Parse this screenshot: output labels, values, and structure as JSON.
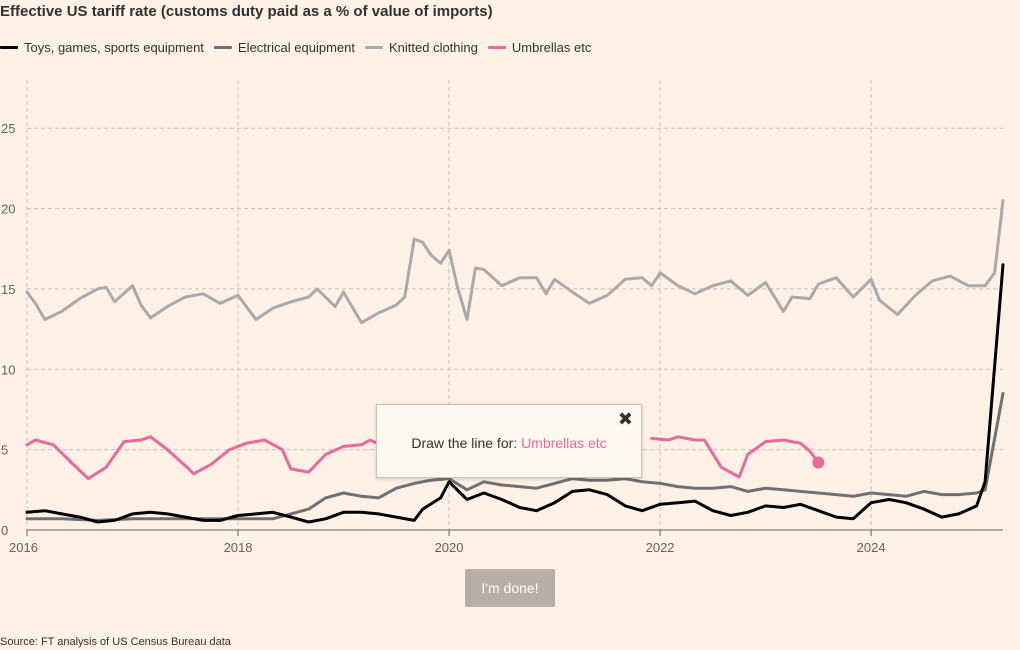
{
  "colors": {
    "toys": "#000000",
    "electrical": "#707070",
    "knitted": "#aaaaaa",
    "umbrellas": "#e86a9c",
    "background": "#fff1e5",
    "grid": "#c8bfb6"
  },
  "tooltip": {
    "prefix": "Draw the line for: ",
    "series": "Umbrellas etc",
    "close_icon": "✖"
  },
  "done_label": "I'm done!",
  "source": "Source: FT analysis of US Census Bureau data",
  "chart_data": {
    "type": "line",
    "title": "Effective US tariff rate (customs duty paid as a % of value of imports)",
    "xlabel": "",
    "ylabel": "",
    "xlim": [
      2016,
      2025.25
    ],
    "ylim": [
      0,
      28
    ],
    "x_ticks": [
      2016,
      2018,
      2020,
      2022,
      2024
    ],
    "y_ticks": [
      0,
      5,
      10,
      15,
      20,
      25
    ],
    "grid": true,
    "legend_position": "top-left",
    "series": [
      {
        "name": "Toys, games, sports equipment",
        "color_key": "toys",
        "points": [
          [
            2016.0,
            1.1
          ],
          [
            2016.17,
            1.2
          ],
          [
            2016.33,
            1.0
          ],
          [
            2016.5,
            0.8
          ],
          [
            2016.67,
            0.5
          ],
          [
            2016.83,
            0.6
          ],
          [
            2017.0,
            1.0
          ],
          [
            2017.17,
            1.1
          ],
          [
            2017.33,
            1.0
          ],
          [
            2017.5,
            0.8
          ],
          [
            2017.67,
            0.6
          ],
          [
            2017.83,
            0.6
          ],
          [
            2018.0,
            0.9
          ],
          [
            2018.17,
            1.0
          ],
          [
            2018.33,
            1.1
          ],
          [
            2018.5,
            0.8
          ],
          [
            2018.67,
            0.5
          ],
          [
            2018.83,
            0.7
          ],
          [
            2019.0,
            1.1
          ],
          [
            2019.17,
            1.1
          ],
          [
            2019.33,
            1.0
          ],
          [
            2019.5,
            0.8
          ],
          [
            2019.67,
            0.6
          ],
          [
            2019.75,
            1.3
          ],
          [
            2019.92,
            2.0
          ],
          [
            2020.0,
            3.0
          ],
          [
            2020.17,
            1.9
          ],
          [
            2020.33,
            2.3
          ],
          [
            2020.5,
            1.9
          ],
          [
            2020.67,
            1.4
          ],
          [
            2020.83,
            1.2
          ],
          [
            2021.0,
            1.7
          ],
          [
            2021.17,
            2.4
          ],
          [
            2021.33,
            2.5
          ],
          [
            2021.5,
            2.2
          ],
          [
            2021.67,
            1.5
          ],
          [
            2021.83,
            1.2
          ],
          [
            2022.0,
            1.6
          ],
          [
            2022.17,
            1.7
          ],
          [
            2022.33,
            1.8
          ],
          [
            2022.5,
            1.2
          ],
          [
            2022.67,
            0.9
          ],
          [
            2022.83,
            1.1
          ],
          [
            2023.0,
            1.5
          ],
          [
            2023.17,
            1.4
          ],
          [
            2023.33,
            1.6
          ],
          [
            2023.5,
            1.2
          ],
          [
            2023.67,
            0.8
          ],
          [
            2023.83,
            0.7
          ],
          [
            2024.0,
            1.7
          ],
          [
            2024.17,
            1.9
          ],
          [
            2024.33,
            1.7
          ],
          [
            2024.5,
            1.3
          ],
          [
            2024.67,
            0.8
          ],
          [
            2024.83,
            1.0
          ],
          [
            2025.0,
            1.5
          ],
          [
            2025.08,
            3.0
          ],
          [
            2025.25,
            16.5
          ]
        ]
      },
      {
        "name": "Electrical equipment",
        "color_key": "electrical",
        "points": [
          [
            2016.0,
            0.7
          ],
          [
            2016.33,
            0.7
          ],
          [
            2016.67,
            0.6
          ],
          [
            2017.0,
            0.7
          ],
          [
            2017.33,
            0.7
          ],
          [
            2017.67,
            0.7
          ],
          [
            2018.0,
            0.7
          ],
          [
            2018.33,
            0.7
          ],
          [
            2018.5,
            1.0
          ],
          [
            2018.67,
            1.3
          ],
          [
            2018.83,
            2.0
          ],
          [
            2019.0,
            2.3
          ],
          [
            2019.17,
            2.1
          ],
          [
            2019.33,
            2.0
          ],
          [
            2019.5,
            2.6
          ],
          [
            2019.67,
            2.9
          ],
          [
            2019.83,
            3.1
          ],
          [
            2020.0,
            3.2
          ],
          [
            2020.17,
            2.5
          ],
          [
            2020.33,
            3.0
          ],
          [
            2020.5,
            2.8
          ],
          [
            2020.67,
            2.7
          ],
          [
            2020.83,
            2.6
          ],
          [
            2021.0,
            2.9
          ],
          [
            2021.17,
            3.2
          ],
          [
            2021.33,
            3.1
          ],
          [
            2021.5,
            3.1
          ],
          [
            2021.67,
            3.2
          ],
          [
            2021.83,
            3.0
          ],
          [
            2022.0,
            2.9
          ],
          [
            2022.17,
            2.7
          ],
          [
            2022.33,
            2.6
          ],
          [
            2022.5,
            2.6
          ],
          [
            2022.67,
            2.7
          ],
          [
            2022.83,
            2.4
          ],
          [
            2023.0,
            2.6
          ],
          [
            2023.17,
            2.5
          ],
          [
            2023.33,
            2.4
          ],
          [
            2023.5,
            2.3
          ],
          [
            2023.67,
            2.2
          ],
          [
            2023.83,
            2.1
          ],
          [
            2024.0,
            2.3
          ],
          [
            2024.17,
            2.2
          ],
          [
            2024.33,
            2.1
          ],
          [
            2024.5,
            2.4
          ],
          [
            2024.67,
            2.2
          ],
          [
            2024.83,
            2.2
          ],
          [
            2025.0,
            2.3
          ],
          [
            2025.08,
            2.5
          ],
          [
            2025.25,
            8.5
          ]
        ]
      },
      {
        "name": "Knitted clothing",
        "color_key": "knitted",
        "points": [
          [
            2016.0,
            14.8
          ],
          [
            2016.08,
            14.1
          ],
          [
            2016.17,
            13.1
          ],
          [
            2016.33,
            13.6
          ],
          [
            2016.5,
            14.4
          ],
          [
            2016.67,
            15.0
          ],
          [
            2016.75,
            15.1
          ],
          [
            2016.83,
            14.2
          ],
          [
            2017.0,
            15.2
          ],
          [
            2017.08,
            14.0
          ],
          [
            2017.17,
            13.2
          ],
          [
            2017.33,
            13.9
          ],
          [
            2017.5,
            14.5
          ],
          [
            2017.67,
            14.7
          ],
          [
            2017.83,
            14.1
          ],
          [
            2018.0,
            14.6
          ],
          [
            2018.17,
            13.1
          ],
          [
            2018.33,
            13.8
          ],
          [
            2018.5,
            14.2
          ],
          [
            2018.67,
            14.5
          ],
          [
            2018.75,
            15.0
          ],
          [
            2018.92,
            13.9
          ],
          [
            2019.0,
            14.8
          ],
          [
            2019.17,
            12.9
          ],
          [
            2019.33,
            13.5
          ],
          [
            2019.5,
            14.0
          ],
          [
            2019.58,
            14.5
          ],
          [
            2019.67,
            18.1
          ],
          [
            2019.75,
            17.9
          ],
          [
            2019.83,
            17.1
          ],
          [
            2019.92,
            16.6
          ],
          [
            2020.0,
            17.4
          ],
          [
            2020.08,
            15.1
          ],
          [
            2020.17,
            13.1
          ],
          [
            2020.25,
            16.3
          ],
          [
            2020.33,
            16.2
          ],
          [
            2020.5,
            15.2
          ],
          [
            2020.67,
            15.7
          ],
          [
            2020.83,
            15.7
          ],
          [
            2020.92,
            14.7
          ],
          [
            2021.0,
            15.6
          ],
          [
            2021.17,
            14.8
          ],
          [
            2021.33,
            14.1
          ],
          [
            2021.5,
            14.6
          ],
          [
            2021.67,
            15.6
          ],
          [
            2021.83,
            15.7
          ],
          [
            2021.92,
            15.2
          ],
          [
            2022.0,
            16.0
          ],
          [
            2022.17,
            15.2
          ],
          [
            2022.33,
            14.7
          ],
          [
            2022.5,
            15.2
          ],
          [
            2022.67,
            15.5
          ],
          [
            2022.83,
            14.6
          ],
          [
            2023.0,
            15.4
          ],
          [
            2023.17,
            13.6
          ],
          [
            2023.25,
            14.5
          ],
          [
            2023.42,
            14.4
          ],
          [
            2023.5,
            15.3
          ],
          [
            2023.67,
            15.7
          ],
          [
            2023.83,
            14.5
          ],
          [
            2024.0,
            15.6
          ],
          [
            2024.08,
            14.3
          ],
          [
            2024.25,
            13.4
          ],
          [
            2024.42,
            14.6
          ],
          [
            2024.58,
            15.5
          ],
          [
            2024.75,
            15.8
          ],
          [
            2024.92,
            15.2
          ],
          [
            2025.08,
            15.2
          ],
          [
            2025.17,
            16.0
          ],
          [
            2025.25,
            20.5
          ]
        ]
      },
      {
        "name": "Umbrellas etc",
        "color_key": "umbrellas",
        "points": [
          [
            2016.0,
            5.3
          ],
          [
            2016.08,
            5.6
          ],
          [
            2016.25,
            5.3
          ],
          [
            2016.42,
            4.2
          ],
          [
            2016.58,
            3.2
          ],
          [
            2016.75,
            3.9
          ],
          [
            2016.92,
            5.5
          ],
          [
            2017.08,
            5.6
          ],
          [
            2017.17,
            5.8
          ],
          [
            2017.33,
            5.0
          ],
          [
            2017.5,
            4.0
          ],
          [
            2017.58,
            3.5
          ],
          [
            2017.75,
            4.1
          ],
          [
            2017.92,
            5.0
          ],
          [
            2018.08,
            5.4
          ],
          [
            2018.25,
            5.6
          ],
          [
            2018.42,
            5.0
          ],
          [
            2018.5,
            3.8
          ],
          [
            2018.67,
            3.6
          ],
          [
            2018.83,
            4.7
          ],
          [
            2019.0,
            5.2
          ],
          [
            2019.17,
            5.3
          ],
          [
            2019.25,
            5.6
          ],
          [
            2019.42,
            5.1
          ],
          [
            2021.92,
            5.7
          ],
          [
            2022.08,
            5.6
          ],
          [
            2022.17,
            5.8
          ],
          [
            2022.33,
            5.6
          ],
          [
            2022.42,
            5.6
          ],
          [
            2022.58,
            3.9
          ],
          [
            2022.75,
            3.3
          ],
          [
            2022.83,
            4.7
          ],
          [
            2023.0,
            5.5
          ],
          [
            2023.17,
            5.6
          ],
          [
            2023.33,
            5.4
          ],
          [
            2023.42,
            4.9
          ],
          [
            2023.5,
            4.2
          ]
        ]
      }
    ],
    "end_marker": {
      "series": "Umbrellas etc",
      "x": 2023.5,
      "y": 4.2
    }
  }
}
